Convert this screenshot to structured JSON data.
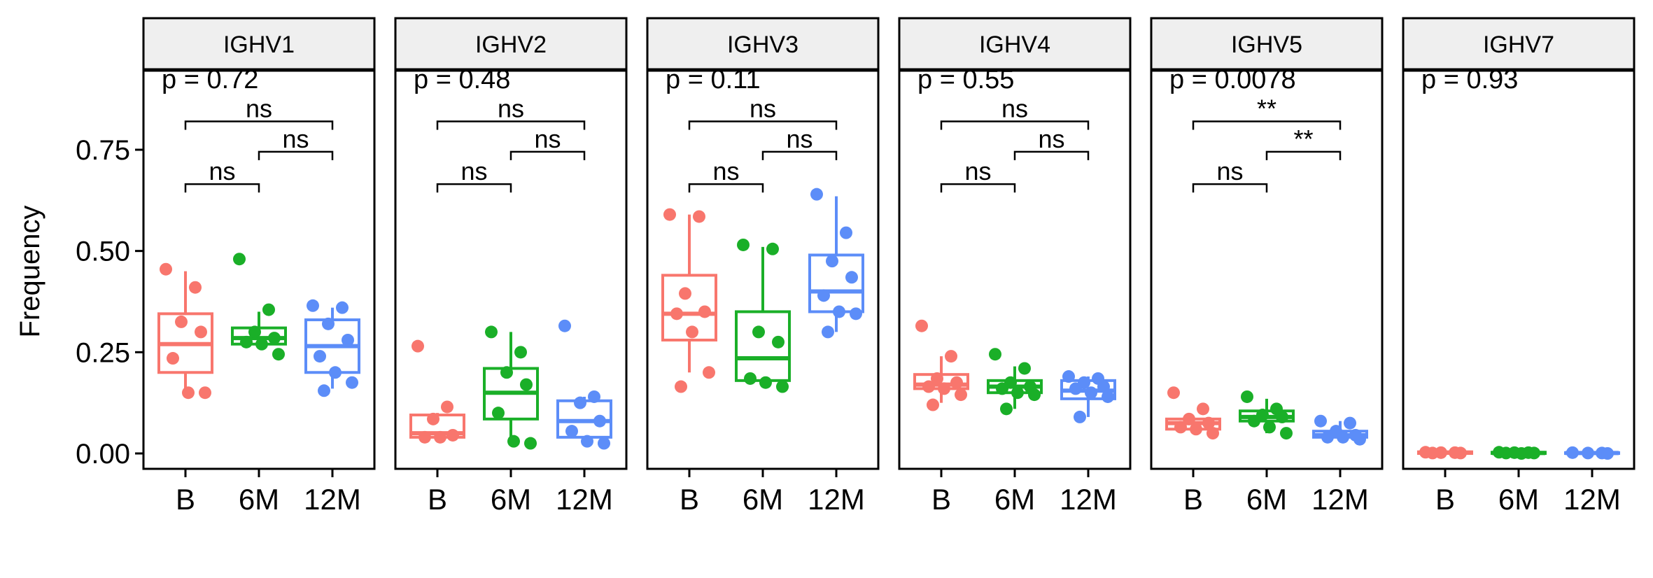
{
  "chart_data": {
    "type": "box",
    "ylabel": "Frequency",
    "ylim": [
      -0.04,
      0.98
    ],
    "y_ticks": [
      "0.00",
      "0.25",
      "0.50",
      "0.75"
    ],
    "y_tick_values": [
      0,
      0.25,
      0.5,
      0.75
    ],
    "categories": [
      "B",
      "6M",
      "12M"
    ],
    "colors": {
      "B": "#F8766D",
      "6M": "#1AAF28",
      "12M": "#5C8DF8"
    },
    "facets": [
      {
        "title": "IGHV1",
        "p_label": "p = 0.72",
        "boxes": [
          {
            "group": "B",
            "lower": 0.15,
            "q1": 0.2,
            "median": 0.27,
            "q3": 0.345,
            "upper": 0.45
          },
          {
            "group": "6M",
            "lower": 0.26,
            "q1": 0.27,
            "median": 0.285,
            "q3": 0.31,
            "upper": 0.35
          },
          {
            "group": "12M",
            "lower": 0.16,
            "q1": 0.2,
            "median": 0.265,
            "q3": 0.33,
            "upper": 0.36
          }
        ],
        "points": {
          "B": [
            0.455,
            0.41,
            0.325,
            0.3,
            0.235,
            0.15,
            0.15
          ],
          "6M": [
            0.48,
            0.355,
            0.3,
            0.285,
            0.275,
            0.27,
            0.245
          ],
          "12M": [
            0.365,
            0.36,
            0.32,
            0.28,
            0.24,
            0.2,
            0.175,
            0.155
          ]
        },
        "comparisons": [
          {
            "from": "B",
            "to": "6M",
            "label": "ns",
            "y": 0.665
          },
          {
            "from": "6M",
            "to": "12M",
            "label": "ns",
            "y": 0.745
          },
          {
            "from": "B",
            "to": "12M",
            "label": "ns",
            "y": 0.82
          }
        ]
      },
      {
        "title": "IGHV2",
        "p_label": "p = 0.48",
        "boxes": [
          {
            "group": "B",
            "lower": 0.04,
            "q1": 0.04,
            "median": 0.05,
            "q3": 0.095,
            "upper": 0.1
          },
          {
            "group": "6M",
            "lower": 0.025,
            "q1": 0.085,
            "median": 0.15,
            "q3": 0.21,
            "upper": 0.3
          },
          {
            "group": "12M",
            "lower": 0.03,
            "q1": 0.04,
            "median": 0.08,
            "q3": 0.13,
            "upper": 0.14
          }
        ],
        "points": {
          "B": [
            0.265,
            0.115,
            0.085,
            0.045,
            0.04,
            0.04
          ],
          "6M": [
            0.3,
            0.25,
            0.2,
            0.17,
            0.1,
            0.03,
            0.025
          ],
          "12M": [
            0.315,
            0.14,
            0.125,
            0.08,
            0.055,
            0.03,
            0.025
          ]
        },
        "comparisons": [
          {
            "from": "B",
            "to": "6M",
            "label": "ns",
            "y": 0.665
          },
          {
            "from": "6M",
            "to": "12M",
            "label": "ns",
            "y": 0.745
          },
          {
            "from": "B",
            "to": "12M",
            "label": "ns",
            "y": 0.82
          }
        ]
      },
      {
        "title": "IGHV3",
        "p_label": "p = 0.11",
        "boxes": [
          {
            "group": "B",
            "lower": 0.2,
            "q1": 0.28,
            "median": 0.345,
            "q3": 0.44,
            "upper": 0.59
          },
          {
            "group": "6M",
            "lower": 0.165,
            "q1": 0.18,
            "median": 0.235,
            "q3": 0.35,
            "upper": 0.51
          },
          {
            "group": "12M",
            "lower": 0.3,
            "q1": 0.35,
            "median": 0.4,
            "q3": 0.49,
            "upper": 0.635
          }
        ],
        "points": {
          "B": [
            0.59,
            0.585,
            0.395,
            0.35,
            0.345,
            0.3,
            0.2,
            0.165
          ],
          "6M": [
            0.515,
            0.505,
            0.3,
            0.275,
            0.185,
            0.175,
            0.165
          ],
          "12M": [
            0.64,
            0.545,
            0.475,
            0.435,
            0.39,
            0.35,
            0.345,
            0.3
          ]
        },
        "comparisons": [
          {
            "from": "B",
            "to": "6M",
            "label": "ns",
            "y": 0.665
          },
          {
            "from": "6M",
            "to": "12M",
            "label": "ns",
            "y": 0.745
          },
          {
            "from": "B",
            "to": "12M",
            "label": "ns",
            "y": 0.82
          }
        ]
      },
      {
        "title": "IGHV4",
        "p_label": "p = 0.55",
        "boxes": [
          {
            "group": "B",
            "lower": 0.125,
            "q1": 0.16,
            "median": 0.17,
            "q3": 0.195,
            "upper": 0.24
          },
          {
            "group": "6M",
            "lower": 0.11,
            "q1": 0.15,
            "median": 0.165,
            "q3": 0.18,
            "upper": 0.215
          },
          {
            "group": "12M",
            "lower": 0.09,
            "q1": 0.135,
            "median": 0.155,
            "q3": 0.18,
            "upper": 0.19
          }
        ],
        "points": {
          "B": [
            0.315,
            0.24,
            0.185,
            0.175,
            0.165,
            0.16,
            0.145,
            0.12
          ],
          "6M": [
            0.245,
            0.21,
            0.175,
            0.165,
            0.16,
            0.15,
            0.145,
            0.11
          ],
          "12M": [
            0.19,
            0.185,
            0.175,
            0.165,
            0.16,
            0.15,
            0.14,
            0.09
          ]
        },
        "comparisons": [
          {
            "from": "B",
            "to": "6M",
            "label": "ns",
            "y": 0.665
          },
          {
            "from": "6M",
            "to": "12M",
            "label": "ns",
            "y": 0.745
          },
          {
            "from": "B",
            "to": "12M",
            "label": "ns",
            "y": 0.82
          }
        ]
      },
      {
        "title": "IGHV5",
        "p_label": "p = 0.0078",
        "boxes": [
          {
            "group": "B",
            "lower": 0.05,
            "q1": 0.06,
            "median": 0.075,
            "q3": 0.085,
            "upper": 0.09
          },
          {
            "group": "6M",
            "lower": 0.05,
            "q1": 0.08,
            "median": 0.09,
            "q3": 0.105,
            "upper": 0.135
          },
          {
            "group": "12M",
            "lower": 0.035,
            "q1": 0.04,
            "median": 0.045,
            "q3": 0.055,
            "upper": 0.08
          }
        ],
        "points": {
          "B": [
            0.15,
            0.11,
            0.085,
            0.075,
            0.065,
            0.06,
            0.05
          ],
          "6M": [
            0.14,
            0.11,
            0.095,
            0.09,
            0.08,
            0.065,
            0.05
          ],
          "12M": [
            0.08,
            0.075,
            0.055,
            0.045,
            0.04,
            0.04,
            0.035
          ]
        },
        "comparisons": [
          {
            "from": "B",
            "to": "6M",
            "label": "ns",
            "y": 0.665
          },
          {
            "from": "6M",
            "to": "12M",
            "label": "**",
            "y": 0.745
          },
          {
            "from": "B",
            "to": "12M",
            "label": "**",
            "y": 0.82
          }
        ]
      },
      {
        "title": "IGHV7",
        "p_label": "p = 0.93",
        "boxes": [
          {
            "group": "B",
            "lower": 0.0,
            "q1": 0.0,
            "median": 0.002,
            "q3": 0.004,
            "upper": 0.005
          },
          {
            "group": "6M",
            "lower": 0.0,
            "q1": 0.0,
            "median": 0.001,
            "q3": 0.003,
            "upper": 0.004
          },
          {
            "group": "12M",
            "lower": 0.0,
            "q1": 0.0,
            "median": 0.001,
            "q3": 0.002,
            "upper": 0.003
          }
        ],
        "points": {
          "B": [
            0.003,
            0.002,
            0.002,
            0.001,
            0.001
          ],
          "6M": [
            0.003,
            0.002,
            0.002,
            0.001,
            0.001,
            0.0
          ],
          "12M": [
            0.002,
            0.001,
            0.001,
            0.0
          ]
        },
        "comparisons": []
      }
    ]
  }
}
